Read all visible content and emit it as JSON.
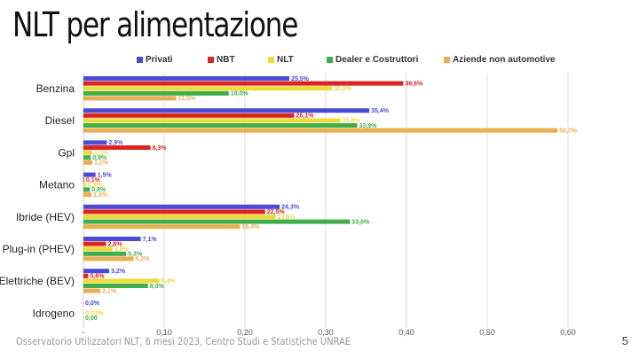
{
  "slide": {
    "title": "NLT per alimentazione",
    "footer": "Osservatorio Utilizzatori NLT, 6 mesi 2023, Centro Studi e Statistiche UNRAE",
    "page_number": "5"
  },
  "chart_data": {
    "type": "bar",
    "orientation": "horizontal",
    "title": "",
    "xlabel": "",
    "ylabel": "",
    "xlim": [
      0,
      0.6
    ],
    "x_ticks": [
      "-",
      "0,10",
      "0,20",
      "0,30",
      "0,40",
      "0,50",
      "0,60"
    ],
    "grid": true,
    "legend_position": "top",
    "categories": [
      "Benzina",
      "Diesel",
      "Gpl",
      "Metano",
      "Ibride (HEV)",
      "Plug-in (PHEV)",
      "Elettriche (BEV)",
      "Idrogeno"
    ],
    "series": [
      {
        "name": "Privati",
        "color": "#4a4ad8",
        "values": [
          0.255,
          0.354,
          0.029,
          0.015,
          0.243,
          0.071,
          0.032,
          0.0
        ],
        "labels": [
          "25,5%",
          "35,4%",
          "2,9%",
          "1,5%",
          "24,3%",
          "7,1%",
          "3,2%",
          "0,0%"
        ]
      },
      {
        "name": "NBT",
        "color": "#dd2222",
        "values": [
          0.396,
          0.261,
          0.083,
          0.001,
          0.225,
          0.028,
          0.006,
          0.0
        ],
        "labels": [
          "39,6%",
          "26,1%",
          "8,3%",
          "0,1%",
          "22,5%",
          "2,8%",
          "0,6%",
          ""
        ]
      },
      {
        "name": "NLT",
        "color": "#ecdc3c",
        "values": [
          0.308,
          0.318,
          0.011,
          0.003,
          0.238,
          0.036,
          0.094,
          0.0003
        ],
        "labels": [
          "30,8%",
          "31,8%",
          "1,1%",
          "0,3%",
          "23,8%",
          "3,6%",
          "9,4%",
          "0,03%"
        ]
      },
      {
        "name": "Dealer e Costruttori",
        "color": "#3fae4b",
        "values": [
          0.18,
          0.339,
          0.009,
          0.008,
          0.33,
          0.053,
          0.08,
          0.0
        ],
        "labels": [
          "18,0%",
          "33,9%",
          "0,9%",
          "0,8%",
          "33,0%",
          "5,3%",
          "8,0%",
          "0,00"
        ]
      },
      {
        "name": "Aziende non automotive",
        "color": "#eaae52",
        "values": [
          0.115,
          0.587,
          0.011,
          0.01,
          0.194,
          0.062,
          0.021,
          0.0
        ],
        "labels": [
          "11,5%",
          "58,7%",
          "1,1%",
          "1,0%",
          "19,4%",
          "6,2%",
          "2,1%",
          ""
        ]
      }
    ]
  }
}
